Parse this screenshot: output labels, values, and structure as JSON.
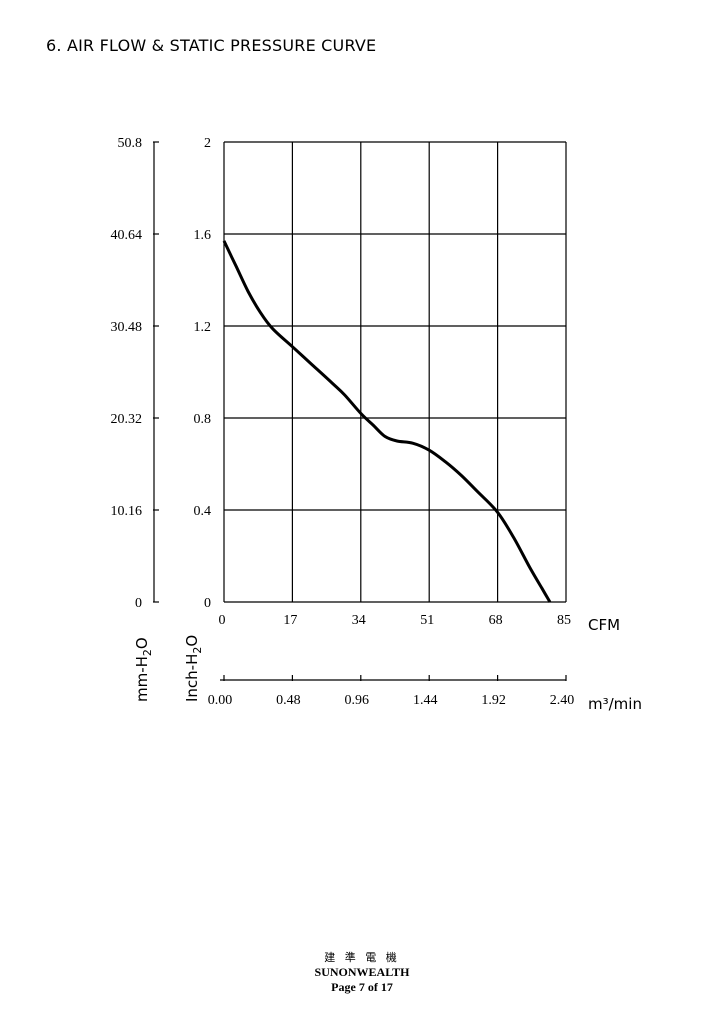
{
  "heading": "6. AIR FLOW & STATIC PRESSURE CURVE",
  "footer": {
    "company_cn": "建 準 電 機",
    "company": "SUNONWEALTH",
    "page": "Page 7 of 17"
  },
  "chart_data": {
    "type": "line",
    "title": "",
    "xlabel": "CFM",
    "xlabel_secondary": "m³/min",
    "ylabel": "Inch-H₂O",
    "ylabel_secondary": "mm-H₂O",
    "xlim": [
      0,
      85
    ],
    "ylim": [
      0,
      2
    ],
    "x_ticks": [
      "0",
      "17",
      "34",
      "51",
      "68",
      "85"
    ],
    "x2_ticks": [
      "0.00",
      "0.48",
      "0.96",
      "1.44",
      "1.92",
      "2.40"
    ],
    "y_ticks": [
      "0",
      "0.4",
      "0.8",
      "1.2",
      "1.6",
      "2"
    ],
    "y2_ticks": [
      "0",
      "10.16",
      "20.32",
      "30.48",
      "40.64",
      "50.8"
    ],
    "grid": true,
    "series": [
      {
        "x": [
          0,
          3,
          6,
          9,
          12,
          17,
          22,
          27,
          30,
          34,
          37,
          40,
          43,
          47,
          51,
          55,
          59,
          63,
          68,
          72,
          76,
          79,
          81
        ],
        "values": [
          1.57,
          1.46,
          1.35,
          1.26,
          1.19,
          1.11,
          1.03,
          0.95,
          0.9,
          0.82,
          0.77,
          0.72,
          0.7,
          0.69,
          0.66,
          0.61,
          0.55,
          0.48,
          0.39,
          0.28,
          0.15,
          0.06,
          0.0
        ]
      }
    ]
  }
}
